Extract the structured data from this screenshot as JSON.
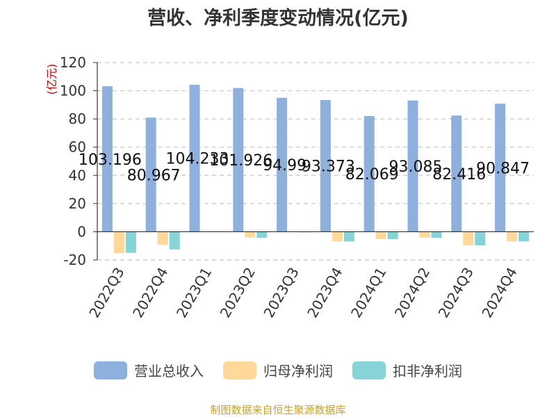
{
  "chart_data": {
    "type": "bar",
    "title": "营收、净利季度变动情况(亿元)",
    "ylabel": "(亿元)",
    "categories": [
      "2022Q3",
      "2022Q4",
      "2023Q1",
      "2023Q2",
      "2023Q3",
      "2023Q4",
      "2024Q1",
      "2024Q2",
      "2024Q3",
      "2024Q4"
    ],
    "ylim": [
      -20,
      120
    ],
    "yticks": [
      -20,
      0,
      20,
      40,
      60,
      80,
      100,
      120
    ],
    "grid": true,
    "legend_position": "bottom",
    "series": [
      {
        "name": "营业总收入",
        "color": "#8eb0dc",
        "values": [
          103.196,
          80.967,
          104.233,
          101.926,
          94.99,
          93.373,
          82.069,
          93.085,
          82.416,
          90.847
        ],
        "labels": [
          "103.196",
          "80.967",
          "104.233",
          "101.926",
          "94.99",
          "93.373",
          "82.069",
          "93.085",
          "82.416",
          "90.847"
        ]
      },
      {
        "name": "归母净利润",
        "color": "#ffd89a",
        "values": [
          -15.2,
          -9.3,
          0,
          -4.0,
          -0.3,
          -6.8,
          -5.2,
          -4.1,
          -9.6,
          -6.8
        ]
      },
      {
        "name": "扣非净利润",
        "color": "#86d4d8",
        "values": [
          -15.0,
          -12.5,
          0,
          -4.3,
          -0.4,
          -6.9,
          -5.3,
          -4.4,
          -9.7,
          -6.9
        ]
      }
    ]
  },
  "footer": {
    "source": "制图数据来自恒生聚源数据库"
  }
}
